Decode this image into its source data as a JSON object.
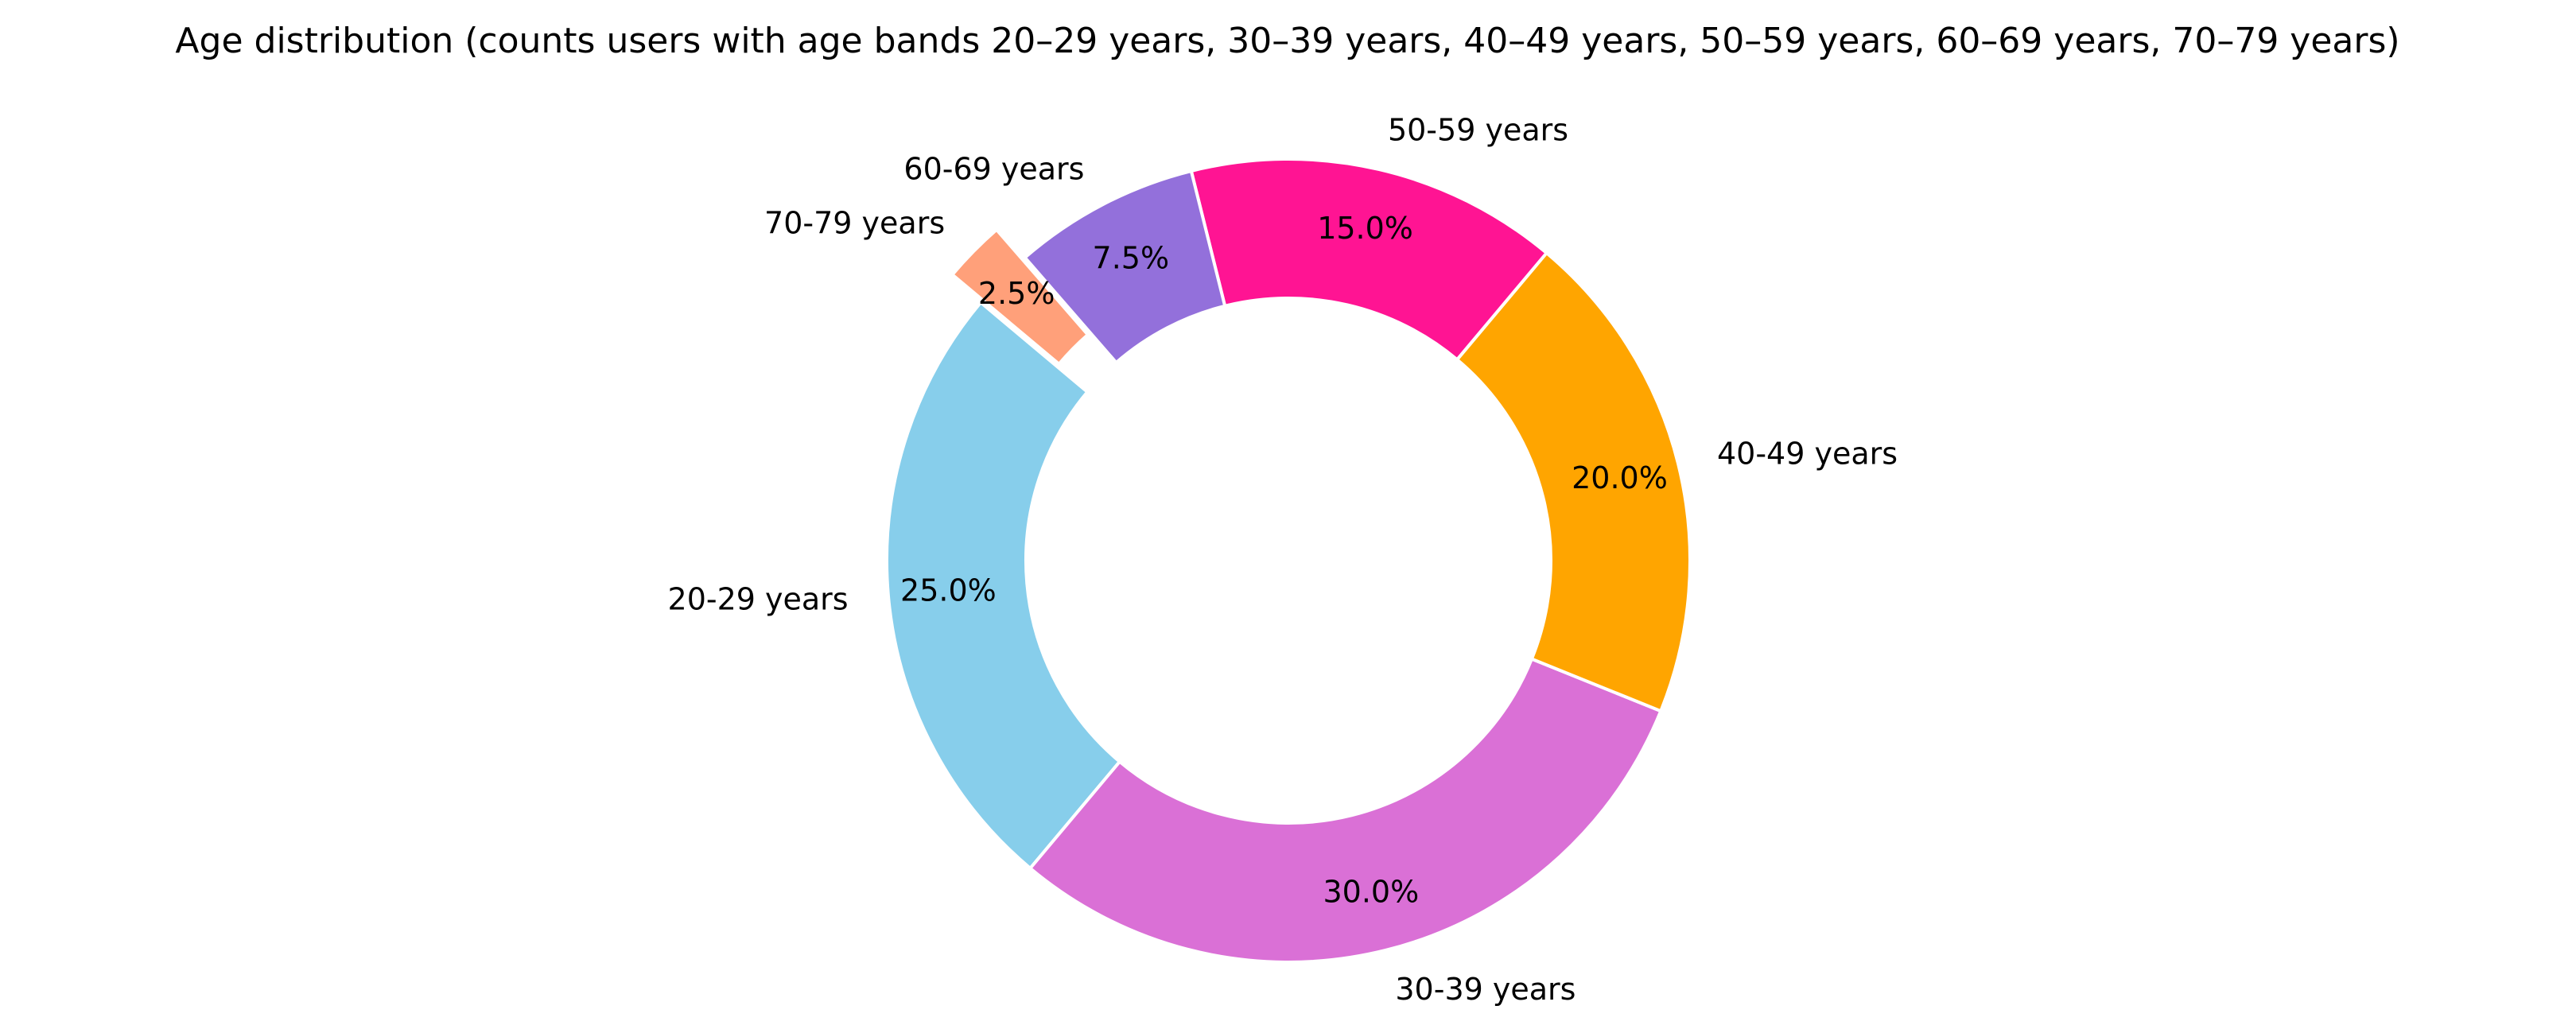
{
  "chart_data": {
    "type": "pie",
    "title": "Age distribution (counts users with age bands 20–29 years, 30–39 years, 40–49 years, 50–59 years, 60–69 years, 70–79 years)",
    "donut": true,
    "start_angle_deg": 140,
    "direction": "counterclockwise",
    "slices": [
      {
        "label": "20-29 years",
        "value": 25.0,
        "pct_label": "25.0%",
        "color": "#87CEEB",
        "exploded": false
      },
      {
        "label": "30-39 years",
        "value": 30.0,
        "pct_label": "30.0%",
        "color": "#DA70D6",
        "exploded": false
      },
      {
        "label": "40-49 years",
        "value": 20.0,
        "pct_label": "20.0%",
        "color": "#FFA500",
        "exploded": false
      },
      {
        "label": "50-59 years",
        "value": 15.0,
        "pct_label": "15.0%",
        "color": "#FF1493",
        "exploded": false
      },
      {
        "label": "60-69 years",
        "value": 7.5,
        "pct_label": "7.5%",
        "color": "#9370DB",
        "exploded": false
      },
      {
        "label": "70-79 years",
        "value": 2.5,
        "pct_label": "2.5%",
        "color": "#FFA07A",
        "exploded": true
      }
    ]
  }
}
